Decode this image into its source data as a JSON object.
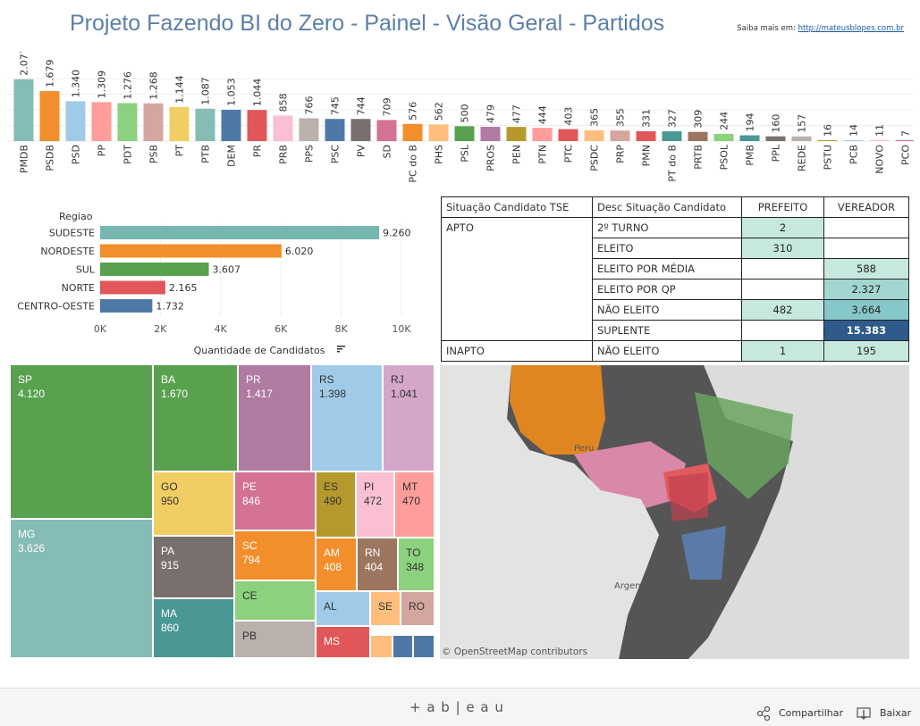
{
  "header": {
    "title": "Projeto Fazendo BI do Zero - Painel - Visão Geral - Partidos",
    "saiba_label": "Saiba mais em:",
    "saiba_link": "http://mateusblopes.com.br"
  },
  "chart_data": [
    {
      "type": "bar",
      "orientation": "vertical",
      "categories": [
        "PMDB",
        "PSDB",
        "PSD",
        "PP",
        "PDT",
        "PSB",
        "PT",
        "PTB",
        "DEM",
        "PR",
        "PRB",
        "PPS",
        "PSC",
        "PV",
        "SD",
        "PC do B",
        "PHS",
        "PSL",
        "PROS",
        "PEN",
        "PTN",
        "PTC",
        "PSDC",
        "PRP",
        "PMN",
        "PT do B",
        "PRTB",
        "PSOL",
        "PMB",
        "PPL",
        "REDE",
        "PSTU",
        "PCB",
        "NOVO",
        "PCO"
      ],
      "values": [
        2077,
        1679,
        1340,
        1309,
        1276,
        1268,
        1144,
        1087,
        1053,
        1044,
        858,
        766,
        745,
        744,
        709,
        576,
        562,
        500,
        479,
        477,
        444,
        403,
        365,
        355,
        331,
        327,
        309,
        244,
        194,
        160,
        157,
        16,
        14,
        11,
        7
      ],
      "value_labels": [
        "2.077",
        "1.679",
        "1.340",
        "1.309",
        "1.276",
        "1.268",
        "1.144",
        "1.087",
        "1.053",
        "1.044",
        "858",
        "766",
        "745",
        "744",
        "709",
        "576",
        "562",
        "500",
        "479",
        "477",
        "444",
        "403",
        "365",
        "355",
        "331",
        "327",
        "309",
        "244",
        "194",
        "160",
        "157",
        "16",
        "14",
        "11",
        "7"
      ],
      "colors": [
        "#86bcb6",
        "#f28e2b",
        "#a0cbe8",
        "#ff9d9a",
        "#8cd17d",
        "#d4a6a0",
        "#f1ce63",
        "#86bcb6",
        "#4e79a7",
        "#e15759",
        "#fabfd2",
        "#bab0ac",
        "#4e79a7",
        "#79706e",
        "#d37295",
        "#f28e2b",
        "#ffbe7d",
        "#59a14f",
        "#b07aa1",
        "#b6992d",
        "#ff9d9a",
        "#e15759",
        "#ffbe7d",
        "#d4a6a0",
        "#e15759",
        "#499894",
        "#9d7660",
        "#8cd17d",
        "#499894",
        "#79706e",
        "#bab0ac",
        "#b6992d",
        "#a0cbe8",
        "#fabfd2",
        "#d37295"
      ]
    },
    {
      "type": "bar",
      "orientation": "horizontal",
      "row_header": "Regiao",
      "categories": [
        "SUDESTE",
        "NORDESTE",
        "SUL",
        "NORTE",
        "CENTRO-OESTE"
      ],
      "values": [
        9260,
        6020,
        3607,
        2165,
        1732
      ],
      "value_labels": [
        "9.260",
        "6.020",
        "3.607",
        "2.165",
        "1.732"
      ],
      "colors": [
        "#76b7b2",
        "#f28e2b",
        "#59a14f",
        "#e15759",
        "#4e79a7"
      ],
      "xlim": [
        0,
        10000
      ],
      "xticks": [
        "0K",
        "2K",
        "4K",
        "6K",
        "8K",
        "10K"
      ],
      "xlabel": "Quantidade de Candidatos"
    },
    {
      "type": "table",
      "headers": [
        "Situação Candidato TSE",
        "Desc Situação Candidato",
        "PREFEITO",
        "VEREADOR"
      ],
      "rows": [
        {
          "sit": "APTO",
          "desc": "2º TURNO",
          "prefeito": "2",
          "vereador": ""
        },
        {
          "sit": "",
          "desc": "ELEITO",
          "prefeito": "310",
          "vereador": ""
        },
        {
          "sit": "",
          "desc": "ELEITO POR MÉDIA",
          "prefeito": "",
          "vereador": "588"
        },
        {
          "sit": "",
          "desc": "ELEITO POR QP",
          "prefeito": "",
          "vereador": "2.327"
        },
        {
          "sit": "",
          "desc": "NÃO ELEITO",
          "prefeito": "482",
          "vereador": "3.664"
        },
        {
          "sit": "",
          "desc": "SUPLENTE",
          "prefeito": "",
          "vereador": "15.383"
        },
        {
          "sit": "INAPTO",
          "desc": "NÃO ELEITO",
          "prefeito": "1",
          "vereador": "195"
        }
      ]
    },
    {
      "type": "treemap",
      "items": [
        {
          "uf": "SP",
          "value": "4.120",
          "color": "#59a14f"
        },
        {
          "uf": "MG",
          "value": "3.626",
          "color": "#86bcb6"
        },
        {
          "uf": "BA",
          "value": "1.670",
          "color": "#59a14f"
        },
        {
          "uf": "PR",
          "value": "1.417",
          "color": "#b07aa1"
        },
        {
          "uf": "RS",
          "value": "1.398",
          "color": "#a0cbe8"
        },
        {
          "uf": "RJ",
          "value": "1.041",
          "color": "#d4a6c8"
        },
        {
          "uf": "GO",
          "value": "950",
          "color": "#f1ce63"
        },
        {
          "uf": "PA",
          "value": "915",
          "color": "#79706e"
        },
        {
          "uf": "MA",
          "value": "860",
          "color": "#499894"
        },
        {
          "uf": "PE",
          "value": "846",
          "color": "#d37295"
        },
        {
          "uf": "SC",
          "value": "794",
          "color": "#f28e2b"
        },
        {
          "uf": "CE",
          "value": "",
          "color": "#8cd17d"
        },
        {
          "uf": "PB",
          "value": "",
          "color": "#bab0ac"
        },
        {
          "uf": "ES",
          "value": "490",
          "color": "#b6992d"
        },
        {
          "uf": "PI",
          "value": "472",
          "color": "#fabfd2"
        },
        {
          "uf": "MT",
          "value": "470",
          "color": "#ff9d9a"
        },
        {
          "uf": "AM",
          "value": "408",
          "color": "#f28e2b"
        },
        {
          "uf": "RN",
          "value": "404",
          "color": "#9d7660"
        },
        {
          "uf": "TO",
          "value": "348",
          "color": "#8cd17d"
        },
        {
          "uf": "AL",
          "value": "",
          "color": "#a0cbe8"
        },
        {
          "uf": "SE",
          "value": "",
          "color": "#ffbe7d"
        },
        {
          "uf": "RO",
          "value": "",
          "color": "#d4a6a0"
        },
        {
          "uf": "MS",
          "value": "",
          "color": "#e15759"
        },
        {
          "uf": "",
          "value": "",
          "color": "#ffbe7d"
        },
        {
          "uf": "",
          "value": "",
          "color": "#4e79a7"
        },
        {
          "uf": "",
          "value": "",
          "color": "#4e79a7"
        }
      ]
    }
  ],
  "map": {
    "label_peru": "Peru",
    "label_argentina": "Argentina",
    "attribution": "© OpenStreetMap contributors"
  },
  "footer": {
    "logo": "+ a b | e a u",
    "share_label": "Compartilhar",
    "download_label": "Baixar"
  }
}
